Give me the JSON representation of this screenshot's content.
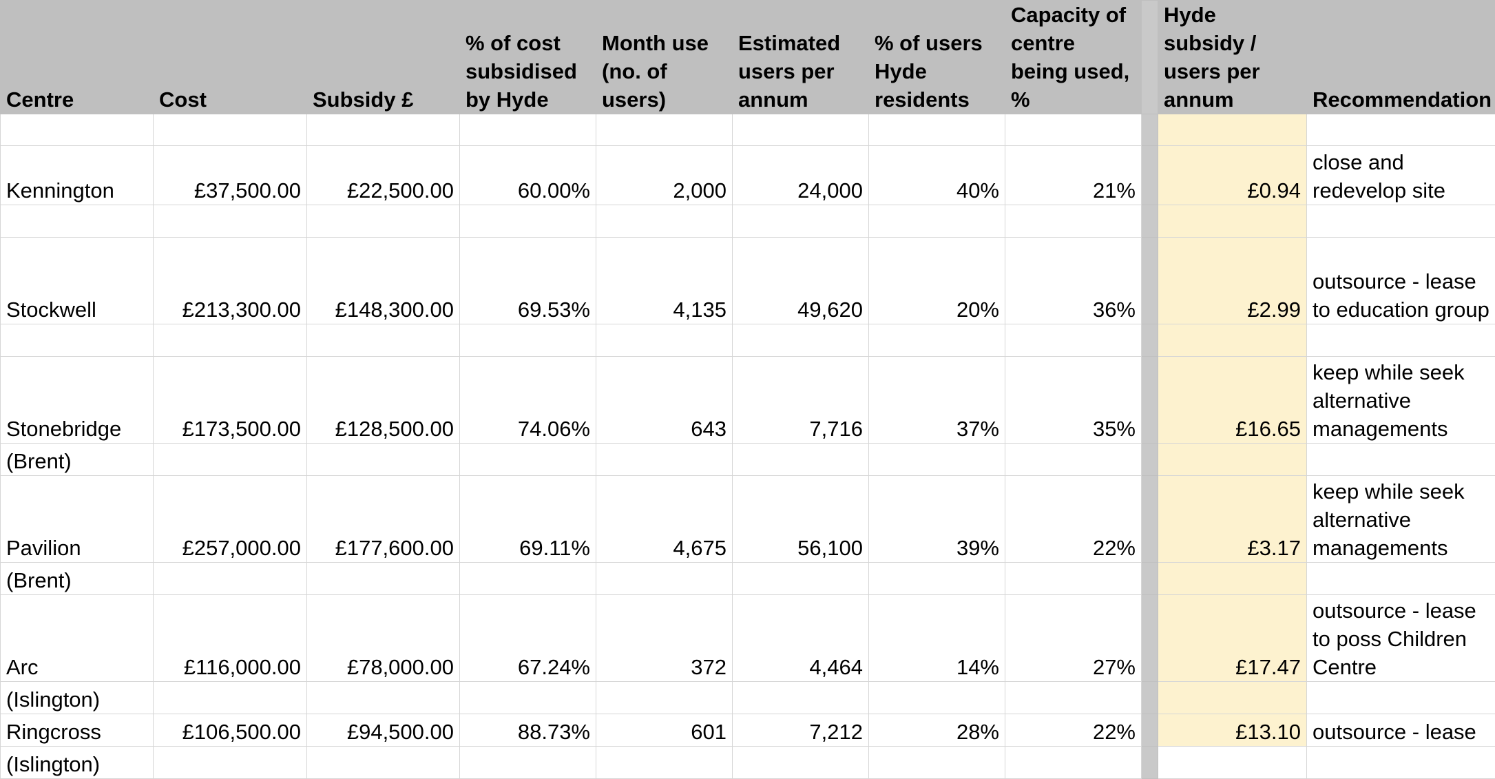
{
  "sheet": {
    "headers": [
      "Centre",
      "Cost",
      "Subsidy £",
      "% of cost subsidised by Hyde",
      "Month use (no. of users)",
      "Estimated users per annum",
      "% of users Hyde residents",
      "Capacity of centre being used, %",
      "",
      "Hyde subsidy / users per annum",
      "Recommendation"
    ],
    "rows": [
      {
        "centre": "Kennington",
        "centre_sub": "",
        "cost": "£37,500.00",
        "subsidy": "£22,500.00",
        "pct_subsidised": "60.00%",
        "month_use": "2,000",
        "est_users": "24,000",
        "pct_hyde": "40%",
        "capacity": "21%",
        "subsidy_per_user": "£0.94",
        "recommendation": "close and redevelop site"
      },
      {
        "centre": "Stockwell",
        "centre_sub": "",
        "cost": "£213,300.00",
        "subsidy": "£148,300.00",
        "pct_subsidised": "69.53%",
        "month_use": "4,135",
        "est_users": "49,620",
        "pct_hyde": "20%",
        "capacity": "36%",
        "subsidy_per_user": "£2.99",
        "recommendation": "outsource - lease to education group"
      },
      {
        "centre": "Stonebridge",
        "centre_sub": "(Brent)",
        "cost": "£173,500.00",
        "subsidy": "£128,500.00",
        "pct_subsidised": "74.06%",
        "month_use": "643",
        "est_users": "7,716",
        "pct_hyde": "37%",
        "capacity": "35%",
        "subsidy_per_user": "£16.65",
        "recommendation": "keep while seek alternative managements"
      },
      {
        "centre": "Pavilion",
        "centre_sub": "(Brent)",
        "cost": "£257,000.00",
        "subsidy": "£177,600.00",
        "pct_subsidised": "69.11%",
        "month_use": "4,675",
        "est_users": "56,100",
        "pct_hyde": "39%",
        "capacity": "22%",
        "subsidy_per_user": "£3.17",
        "recommendation": "keep while seek alternative managements"
      },
      {
        "centre": "Arc",
        "centre_sub": "(Islington)",
        "cost": "£116,000.00",
        "subsidy": "£78,000.00",
        "pct_subsidised": "67.24%",
        "month_use": "372",
        "est_users": "4,464",
        "pct_hyde": "14%",
        "capacity": "27%",
        "subsidy_per_user": "£17.47",
        "recommendation": "outsource - lease to poss Children Centre"
      },
      {
        "centre": "Ringcross",
        "centre_sub": "(Islington)",
        "cost": "£106,500.00",
        "subsidy": "£94,500.00",
        "pct_subsidised": "88.73%",
        "month_use": "601",
        "est_users": "7,212",
        "pct_hyde": "28%",
        "capacity": "22%",
        "subsidy_per_user": "£13.10",
        "recommendation": "outsource - lease"
      }
    ],
    "colors": {
      "header_bg": "#bfbfbf",
      "highlight": "#fdf2cf",
      "gridline": "#d6d6d6",
      "divider": "#c9c9c9"
    }
  }
}
